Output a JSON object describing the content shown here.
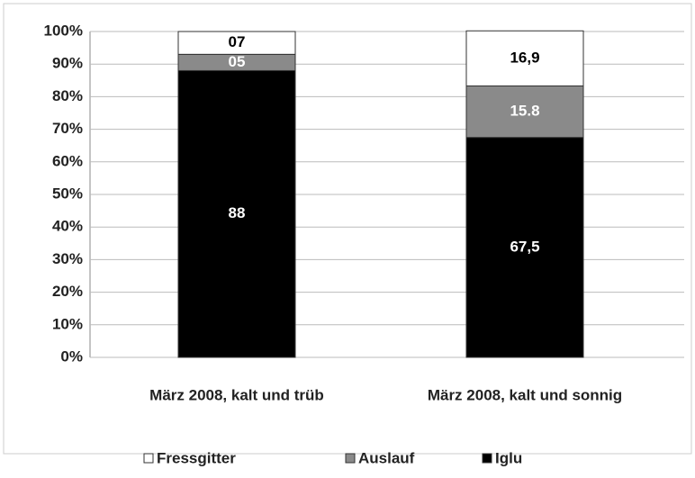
{
  "chart_data": {
    "type": "stacked_bar",
    "categories": [
      "März 2008, kalt und trüb",
      "März 2008, kalt und sonnig"
    ],
    "series": [
      {
        "name": "Fressgitter",
        "color": "#ffffff",
        "values": [
          7,
          16.9
        ],
        "value_labels": [
          "07",
          "16,9"
        ]
      },
      {
        "name": "Auslauf",
        "color": "#8a8a8a",
        "values": [
          5,
          15.8
        ],
        "value_labels": [
          "05",
          "15.8"
        ]
      },
      {
        "name": "Iglu",
        "color": "#000000",
        "values": [
          88,
          67.5
        ],
        "value_labels": [
          "88",
          "67,5"
        ]
      }
    ],
    "ylim": [
      0,
      100
    ],
    "yticks": [
      {
        "value": 0,
        "label": "0%"
      },
      {
        "value": 10,
        "label": "10%"
      },
      {
        "value": 20,
        "label": "20%"
      },
      {
        "value": 30,
        "label": "30%"
      },
      {
        "value": 40,
        "label": "40%"
      },
      {
        "value": 50,
        "label": "50%"
      },
      {
        "value": 60,
        "label": "60%"
      },
      {
        "value": 70,
        "label": "70%"
      },
      {
        "value": 80,
        "label": "80%"
      },
      {
        "value": 90,
        "label": "90%"
      },
      {
        "value": 100,
        "label": "100%"
      }
    ],
    "grid": true,
    "legend": "bottom"
  }
}
